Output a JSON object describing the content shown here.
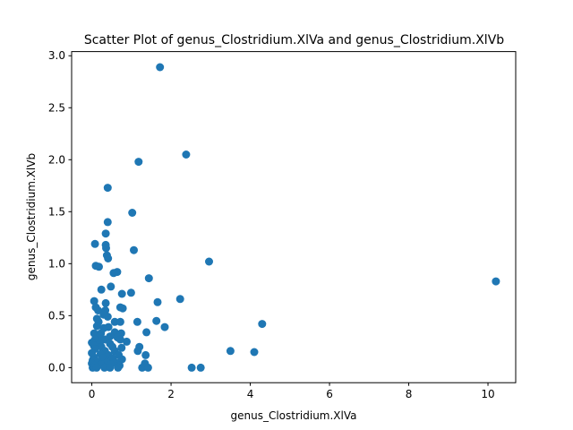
{
  "chart_data": {
    "type": "scatter",
    "title": "Scatter Plot of genus_Clostridium.XlVa and genus_Clostridium.XlVb",
    "xlabel": "genus_Clostridium.XlVa",
    "ylabel": "genus_Clostridium.XlVb",
    "xlim": [
      -0.51,
      10.7
    ],
    "ylim": [
      -0.145,
      3.04
    ],
    "xticks": [
      0,
      2,
      4,
      6,
      8,
      10
    ],
    "xtick_labels": [
      "0",
      "2",
      "4",
      "6",
      "8",
      "10"
    ],
    "yticks": [
      0.0,
      0.5,
      1.0,
      1.5,
      2.0,
      2.5,
      3.0
    ],
    "ytick_labels": [
      "0.0",
      "0.5",
      "1.0",
      "1.5",
      "2.0",
      "2.5",
      "3.0"
    ],
    "grid": false,
    "marker_color": "#1f77b4",
    "points": [
      [
        1.72,
        2.89
      ],
      [
        2.38,
        2.05
      ],
      [
        1.18,
        1.98
      ],
      [
        0.4,
        1.73
      ],
      [
        1.02,
        1.49
      ],
      [
        0.4,
        1.4
      ],
      [
        0.35,
        1.29
      ],
      [
        0.08,
        1.19
      ],
      [
        0.35,
        1.18
      ],
      [
        0.36,
        1.15
      ],
      [
        1.06,
        1.13
      ],
      [
        0.38,
        1.08
      ],
      [
        0.41,
        1.05
      ],
      [
        2.96,
        1.02
      ],
      [
        0.1,
        0.98
      ],
      [
        0.18,
        0.97
      ],
      [
        0.64,
        0.92
      ],
      [
        0.55,
        0.91
      ],
      [
        1.44,
        0.86
      ],
      [
        10.2,
        0.83
      ],
      [
        0.48,
        0.78
      ],
      [
        0.24,
        0.75
      ],
      [
        0.99,
        0.72
      ],
      [
        0.76,
        0.71
      ],
      [
        2.23,
        0.66
      ],
      [
        0.06,
        0.64
      ],
      [
        0.35,
        0.62
      ],
      [
        1.66,
        0.63
      ],
      [
        0.72,
        0.58
      ],
      [
        0.78,
        0.57
      ],
      [
        0.1,
        0.58
      ],
      [
        0.16,
        0.55
      ],
      [
        0.34,
        0.55
      ],
      [
        0.3,
        0.51
      ],
      [
        0.4,
        0.49
      ],
      [
        0.13,
        0.47
      ],
      [
        0.17,
        0.44
      ],
      [
        0.58,
        0.44
      ],
      [
        0.72,
        0.44
      ],
      [
        1.15,
        0.44
      ],
      [
        1.63,
        0.45
      ],
      [
        4.3,
        0.42
      ],
      [
        0.13,
        0.4
      ],
      [
        0.42,
        0.39
      ],
      [
        0.3,
        0.38
      ],
      [
        1.84,
        0.39
      ],
      [
        1.38,
        0.34
      ],
      [
        0.06,
        0.33
      ],
      [
        0.23,
        0.33
      ],
      [
        0.58,
        0.34
      ],
      [
        0.74,
        0.33
      ],
      [
        0.2,
        0.3
      ],
      [
        0.46,
        0.3
      ],
      [
        0.65,
        0.29
      ],
      [
        0.08,
        0.27
      ],
      [
        0.33,
        0.27
      ],
      [
        0.72,
        0.27
      ],
      [
        0.88,
        0.25
      ],
      [
        0.0,
        0.24
      ],
      [
        0.2,
        0.23
      ],
      [
        0.46,
        0.23
      ],
      [
        0.05,
        0.21
      ],
      [
        0.24,
        0.2
      ],
      [
        0.52,
        0.2
      ],
      [
        1.2,
        0.2
      ],
      [
        0.75,
        0.19
      ],
      [
        0.08,
        0.18
      ],
      [
        0.33,
        0.16
      ],
      [
        0.58,
        0.16
      ],
      [
        1.16,
        0.16
      ],
      [
        3.5,
        0.16
      ],
      [
        4.1,
        0.15
      ],
      [
        0.0,
        0.14
      ],
      [
        0.22,
        0.13
      ],
      [
        0.42,
        0.12
      ],
      [
        0.68,
        0.12
      ],
      [
        1.36,
        0.12
      ],
      [
        0.05,
        0.1
      ],
      [
        0.28,
        0.09
      ],
      [
        0.52,
        0.09
      ],
      [
        0.76,
        0.08
      ],
      [
        0.02,
        0.07
      ],
      [
        0.14,
        0.06
      ],
      [
        0.38,
        0.05
      ],
      [
        0.6,
        0.05
      ],
      [
        0.0,
        0.04
      ],
      [
        0.24,
        0.03
      ],
      [
        0.48,
        0.03
      ],
      [
        1.34,
        0.04
      ],
      [
        0.06,
        0.02
      ],
      [
        0.7,
        0.02
      ],
      [
        0.02,
        0.0
      ],
      [
        0.12,
        0.0
      ],
      [
        0.32,
        0.0
      ],
      [
        0.46,
        0.0
      ],
      [
        0.66,
        0.0
      ],
      [
        1.27,
        0.0
      ],
      [
        1.42,
        0.0
      ],
      [
        2.52,
        0.0
      ],
      [
        2.75,
        0.0
      ]
    ]
  }
}
